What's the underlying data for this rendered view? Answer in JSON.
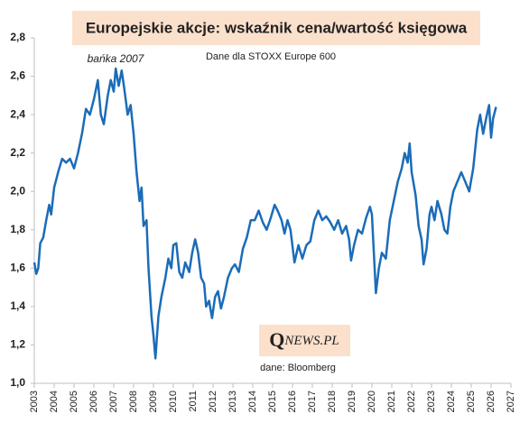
{
  "chart_data": {
    "type": "line",
    "title": "Europejskie akcje: wskaźnik cena/wartość księgowa",
    "subtitle": "Dane dla STOXX Europe 600",
    "annotation": "bańka 2007",
    "logo": {
      "initial": "Q",
      "rest": "NEWS.PL"
    },
    "source": "dane: Bloomberg",
    "xlim": [
      2003,
      2027
    ],
    "xticks": [
      2003,
      2004,
      2005,
      2006,
      2007,
      2008,
      2009,
      2010,
      2011,
      2012,
      2013,
      2014,
      2015,
      2016,
      2017,
      2018,
      2019,
      2020,
      2021,
      2022,
      2023,
      2024,
      2025,
      2026,
      2027
    ],
    "ylim": [
      1.0,
      2.8
    ],
    "yticks": [
      {
        "value": 1.0,
        "label": "1,0"
      },
      {
        "value": 1.2,
        "label": "1,2"
      },
      {
        "value": 1.4,
        "label": "1,4"
      },
      {
        "value": 1.6,
        "label": "1,6"
      },
      {
        "value": 1.8,
        "label": "1,8"
      },
      {
        "value": 2.0,
        "label": "2,0"
      },
      {
        "value": 2.2,
        "label": "2,2"
      },
      {
        "value": 2.4,
        "label": "2,4"
      },
      {
        "value": 2.6,
        "label": "2,6"
      },
      {
        "value": 2.8,
        "label": "2,8"
      }
    ],
    "color": "#1b6cb8",
    "x": [
      2003.0,
      2003.1,
      2003.2,
      2003.3,
      2003.45,
      2003.6,
      2003.75,
      2003.85,
      2004.0,
      2004.2,
      2004.4,
      2004.6,
      2004.8,
      2005.0,
      2005.2,
      2005.4,
      2005.6,
      2005.8,
      2006.0,
      2006.2,
      2006.35,
      2006.5,
      2006.7,
      2006.85,
      2007.0,
      2007.1,
      2007.25,
      2007.4,
      2007.55,
      2007.7,
      2007.85,
      2008.0,
      2008.15,
      2008.3,
      2008.4,
      2008.5,
      2008.65,
      2008.75,
      2008.9,
      2009.0,
      2009.1,
      2009.25,
      2009.4,
      2009.6,
      2009.75,
      2009.9,
      2010.0,
      2010.15,
      2010.3,
      2010.45,
      2010.6,
      2010.8,
      2010.95,
      2011.1,
      2011.25,
      2011.4,
      2011.55,
      2011.65,
      2011.8,
      2011.95,
      2012.1,
      2012.25,
      2012.4,
      2012.55,
      2012.75,
      2012.95,
      2013.1,
      2013.3,
      2013.5,
      2013.7,
      2013.9,
      2014.1,
      2014.3,
      2014.5,
      2014.7,
      2014.9,
      2015.1,
      2015.25,
      2015.45,
      2015.6,
      2015.75,
      2015.9,
      2016.1,
      2016.3,
      2016.5,
      2016.7,
      2016.9,
      2017.1,
      2017.3,
      2017.5,
      2017.7,
      2017.9,
      2018.1,
      2018.3,
      2018.5,
      2018.7,
      2018.85,
      2018.95,
      2019.1,
      2019.3,
      2019.5,
      2019.7,
      2019.9,
      2020.0,
      2020.2,
      2020.35,
      2020.5,
      2020.7,
      2020.9,
      2021.1,
      2021.3,
      2021.5,
      2021.65,
      2021.8,
      2021.9,
      2022.0,
      2022.2,
      2022.35,
      2022.5,
      2022.6,
      2022.75,
      2022.9,
      2023.0,
      2023.15,
      2023.3,
      2023.5,
      2023.65,
      2023.8,
      2023.95,
      2024.1,
      2024.3,
      2024.5,
      2024.7,
      2024.9,
      2025.1,
      2025.3,
      2025.45,
      2025.6,
      2025.75,
      2025.9,
      2026.0,
      2026.1,
      2026.25
    ],
    "values": [
      1.63,
      1.57,
      1.6,
      1.73,
      1.76,
      1.85,
      1.93,
      1.88,
      2.02,
      2.1,
      2.17,
      2.15,
      2.17,
      2.12,
      2.2,
      2.3,
      2.43,
      2.4,
      2.48,
      2.58,
      2.4,
      2.35,
      2.5,
      2.58,
      2.52,
      2.64,
      2.55,
      2.63,
      2.52,
      2.4,
      2.45,
      2.3,
      2.1,
      1.95,
      2.02,
      1.82,
      1.85,
      1.6,
      1.35,
      1.25,
      1.13,
      1.35,
      1.45,
      1.55,
      1.65,
      1.6,
      1.72,
      1.73,
      1.58,
      1.55,
      1.63,
      1.58,
      1.68,
      1.75,
      1.68,
      1.55,
      1.52,
      1.4,
      1.43,
      1.34,
      1.45,
      1.48,
      1.39,
      1.45,
      1.55,
      1.6,
      1.62,
      1.58,
      1.7,
      1.76,
      1.85,
      1.85,
      1.9,
      1.84,
      1.8,
      1.86,
      1.93,
      1.9,
      1.85,
      1.78,
      1.85,
      1.8,
      1.63,
      1.72,
      1.65,
      1.72,
      1.74,
      1.85,
      1.9,
      1.85,
      1.87,
      1.84,
      1.8,
      1.85,
      1.78,
      1.82,
      1.75,
      1.64,
      1.72,
      1.8,
      1.78,
      1.86,
      1.92,
      1.88,
      1.47,
      1.6,
      1.68,
      1.65,
      1.85,
      1.95,
      2.05,
      2.12,
      2.2,
      2.15,
      2.25,
      2.1,
      1.98,
      1.82,
      1.75,
      1.62,
      1.7,
      1.88,
      1.92,
      1.85,
      1.95,
      1.88,
      1.8,
      1.78,
      1.92,
      2.0,
      2.05,
      2.1,
      2.05,
      2.0,
      2.12,
      2.32,
      2.4,
      2.3,
      2.38,
      2.45,
      2.28,
      2.38,
      2.44
    ]
  }
}
